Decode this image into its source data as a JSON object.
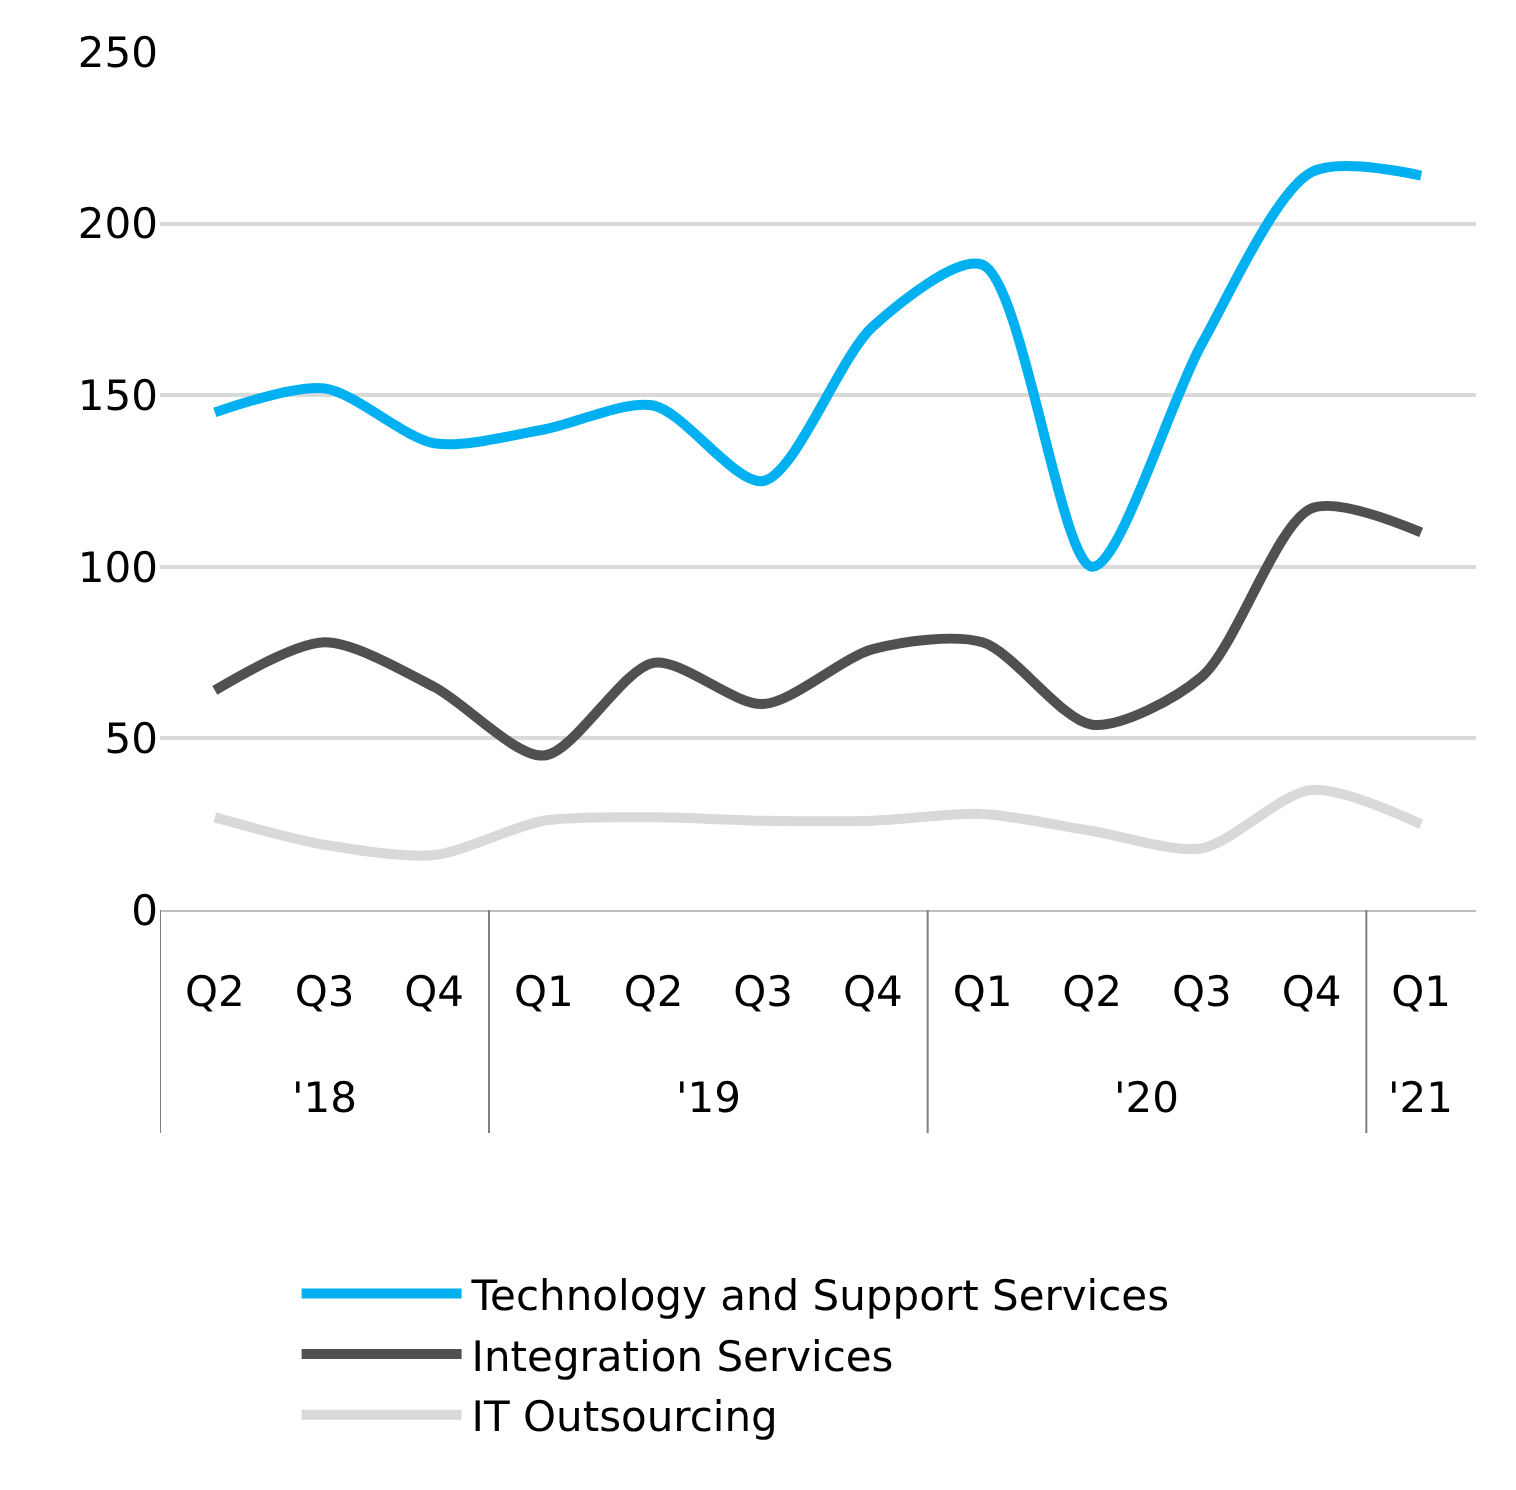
{
  "chart_data": {
    "type": "line",
    "categories": [
      "Q2",
      "Q3",
      "Q4",
      "Q1",
      "Q2",
      "Q3",
      "Q4",
      "Q1",
      "Q2",
      "Q3",
      "Q4",
      "Q1"
    ],
    "annotations": [
      "'18",
      "'19",
      "'20",
      "'21"
    ],
    "series": [
      {
        "name": "Technology and Support Services",
        "color": "#00b0f0",
        "values": [
          145,
          152,
          136,
          140,
          147,
          125,
          170,
          188,
          100,
          165,
          215,
          214
        ]
      },
      {
        "name": "Integration Services",
        "color": "#505050",
        "values": [
          64,
          78,
          65,
          45,
          72,
          60,
          76,
          78,
          54,
          68,
          117,
          110
        ]
      },
      {
        "name": "IT Outsourcing",
        "color": "#d9d9d9",
        "values": [
          27,
          19,
          16,
          26,
          27,
          26,
          26,
          28,
          23,
          18,
          35,
          25
        ]
      }
    ],
    "ylim": [
      0,
      250
    ],
    "yticks": [
      0,
      50,
      100,
      150,
      200,
      250
    ],
    "grid": "y",
    "legend": "bottom",
    "marker": "none",
    "line_style": "solid"
  }
}
